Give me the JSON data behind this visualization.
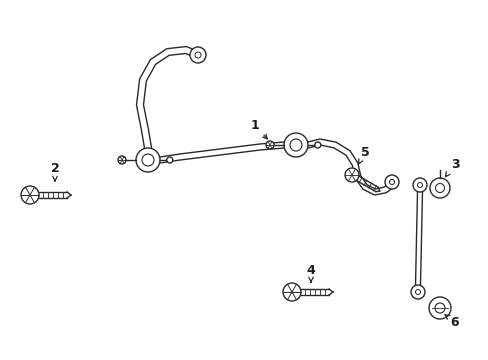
{
  "bg_color": "#ffffff",
  "line_color": "#2a2a2a",
  "label_color": "#1a1a1a",
  "fig_width": 4.89,
  "fig_height": 3.6,
  "dpi": 100
}
